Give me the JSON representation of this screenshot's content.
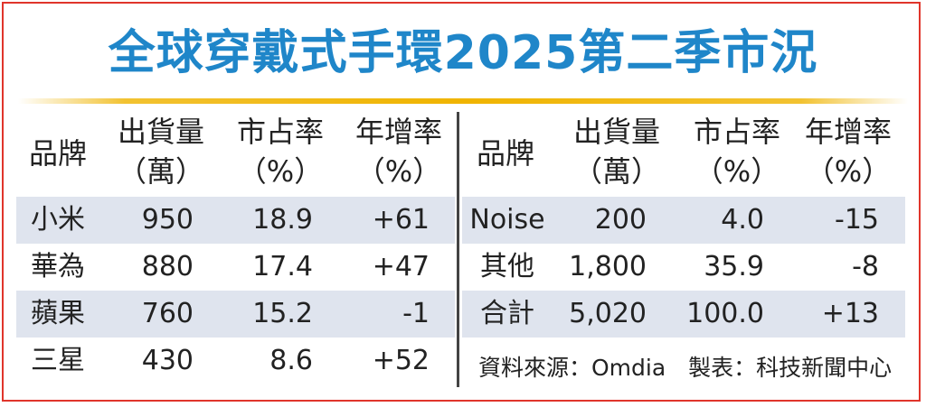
{
  "title": "全球穿戴式手環2025第二季市況",
  "headers": {
    "brand": "品牌",
    "shipments": [
      "出貨量",
      "（萬）"
    ],
    "share": [
      "市占率",
      "（%）"
    ],
    "yoy": [
      "年增率",
      "（%）"
    ]
  },
  "left_rows": [
    {
      "brand": "小米",
      "shipments": "950",
      "share": "18.9",
      "yoy": "+61"
    },
    {
      "brand": "華為",
      "shipments": "880",
      "share": "17.4",
      "yoy": "+47"
    },
    {
      "brand": "蘋果",
      "shipments": "760",
      "share": "15.2",
      "yoy": "-1"
    },
    {
      "brand": "三星",
      "shipments": "430",
      "share": "8.6",
      "yoy": "+52"
    }
  ],
  "right_rows": [
    {
      "brand": "Noise",
      "shipments": "200",
      "share": "4.0",
      "yoy": "-15"
    },
    {
      "brand": "其他",
      "shipments": "1,800",
      "share": "35.9",
      "yoy": "-8"
    },
    {
      "brand": "合計",
      "shipments": "5,020",
      "share": "100.0",
      "yoy": "+13"
    }
  ],
  "source": "資料來源：Omdia　製表：科技新聞中心",
  "colors": {
    "title": "#1f86c9",
    "accent_rule": "#f0b400",
    "row_shade": "#dfe4ee",
    "frame": "#e0352b"
  }
}
